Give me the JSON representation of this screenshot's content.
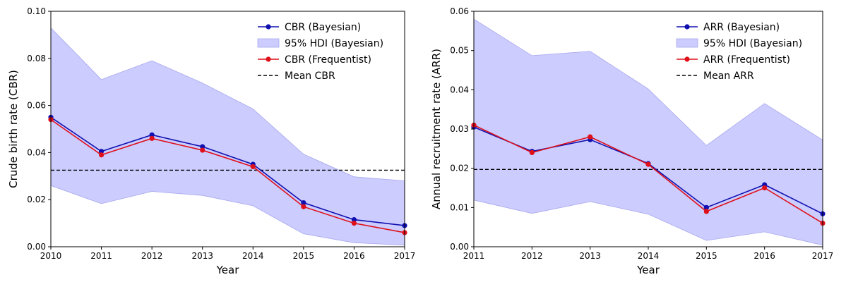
{
  "chart_data": [
    {
      "type": "line",
      "xlabel": "Year",
      "ylabel": "Crude birth rate (CBR)",
      "xlim": [
        2010,
        2017
      ],
      "ylim": [
        0,
        0.1
      ],
      "x": [
        2010,
        2011,
        2012,
        2013,
        2014,
        2015,
        2016,
        2017
      ],
      "x_tick_labels": [
        "2010",
        "2011",
        "2012",
        "2013",
        "2014",
        "2015",
        "2016",
        "2017"
      ],
      "y_ticks": [
        0,
        0.02,
        0.04,
        0.06,
        0.08,
        0.1
      ],
      "y_tick_labels": [
        "0.00",
        "0.02",
        "0.04",
        "0.06",
        "0.08",
        "0.10"
      ],
      "legend_position": "top-right",
      "series": [
        {
          "name": "CBR (Bayesian)",
          "kind": "line",
          "color": "#1010b0",
          "values": [
            0.055,
            0.0405,
            0.0475,
            0.0425,
            0.035,
            0.0187,
            0.0115,
            0.009
          ]
        },
        {
          "name": "95% HDI (Bayesian)",
          "kind": "band",
          "color": "#ccccff",
          "lower": [
            0.026,
            0.0183,
            0.0235,
            0.0218,
            0.0174,
            0.0055,
            0.0017,
            0.0007
          ],
          "upper": [
            0.093,
            0.071,
            0.079,
            0.0695,
            0.0585,
            0.0393,
            0.0297,
            0.028
          ]
        },
        {
          "name": "CBR (Frequentist)",
          "kind": "line",
          "color": "#e0101a",
          "values": [
            0.054,
            0.039,
            0.046,
            0.041,
            0.034,
            0.017,
            0.01,
            0.006
          ]
        },
        {
          "name": "Mean CBR",
          "kind": "hline",
          "color": "#000000",
          "value": 0.0325
        }
      ]
    },
    {
      "type": "line",
      "xlabel": "Year",
      "ylabel": "Annual recruitment rate (ARR)",
      "xlim": [
        2011,
        2017
      ],
      "ylim": [
        0,
        0.06
      ],
      "x": [
        2011,
        2012,
        2013,
        2014,
        2015,
        2016,
        2017
      ],
      "x_tick_labels": [
        "2011",
        "2012",
        "2013",
        "2014",
        "2015",
        "2016",
        "2017"
      ],
      "y_ticks": [
        0,
        0.01,
        0.02,
        0.03,
        0.04,
        0.05,
        0.06
      ],
      "y_tick_labels": [
        "0.00",
        "0.01",
        "0.02",
        "0.03",
        "0.04",
        "0.05",
        "0.06"
      ],
      "legend_position": "top-right",
      "series": [
        {
          "name": "ARR (Bayesian)",
          "kind": "line",
          "color": "#1010b0",
          "values": [
            0.0305,
            0.0243,
            0.0273,
            0.0212,
            0.01,
            0.0158,
            0.0084
          ]
        },
        {
          "name": "95% HDI (Bayesian)",
          "kind": "band",
          "color": "#ccccff",
          "lower": [
            0.0119,
            0.0085,
            0.0115,
            0.0083,
            0.0016,
            0.0038,
            0.0004
          ],
          "upper": [
            0.058,
            0.0487,
            0.0498,
            0.0402,
            0.0258,
            0.0365,
            0.0272
          ]
        },
        {
          "name": "ARR (Frequentist)",
          "kind": "line",
          "color": "#e0101a",
          "values": [
            0.031,
            0.024,
            0.028,
            0.021,
            0.009,
            0.015,
            0.006
          ]
        },
        {
          "name": "Mean ARR",
          "kind": "hline",
          "color": "#000000",
          "value": 0.0197
        }
      ]
    }
  ]
}
